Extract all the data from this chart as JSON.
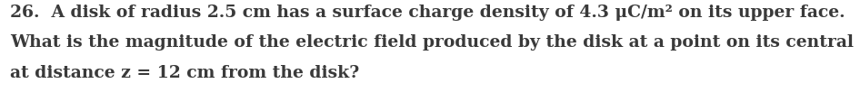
{
  "line1": "26.  A disk of radius 2.5 cm has a surface charge density of 4.3 μC/m² on its upper face.",
  "line2": "What is the magnitude of the electric field produced by the disk at a point on its central axis",
  "line3": "at distance z = 12 cm from the disk?",
  "font_family": "serif",
  "font_size": 13.5,
  "font_weight": "bold",
  "text_color": "#3a3a3a",
  "background_color": "#ffffff",
  "fig_width": 9.46,
  "fig_height": 1.14,
  "dpi": 100
}
